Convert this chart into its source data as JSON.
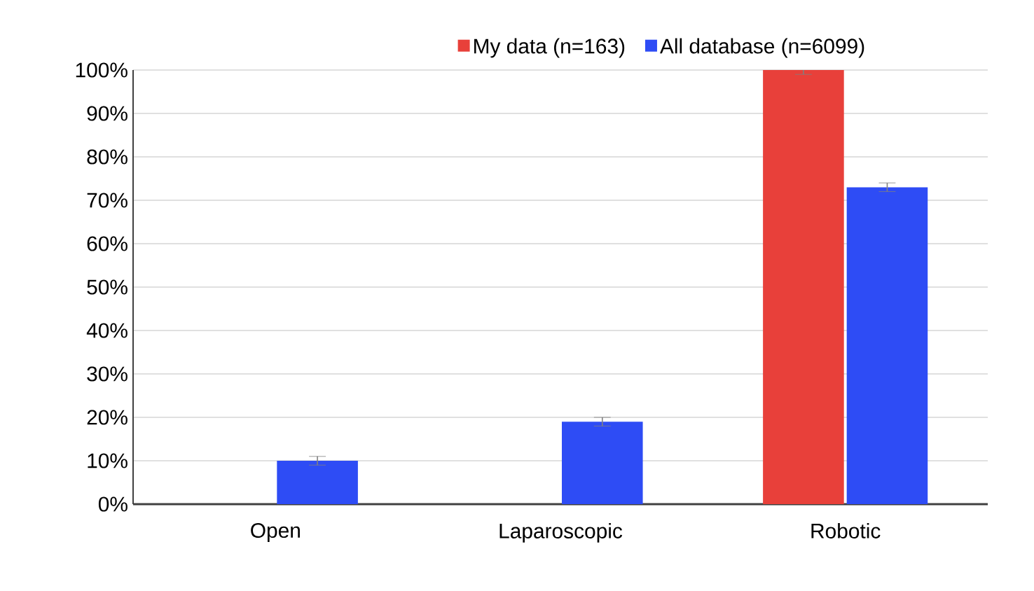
{
  "chart_data": {
    "type": "bar",
    "categories": [
      "Open",
      "Laparoscopic",
      "Robotic"
    ],
    "series": [
      {
        "name": "My data (n=163)",
        "color": "#e8403a",
        "values": [
          0,
          0,
          100
        ],
        "errors": [
          null,
          null,
          1
        ]
      },
      {
        "name": "All database (n=6099)",
        "color": "#2e4cf5",
        "values": [
          10,
          19,
          73
        ],
        "errors": [
          1,
          1,
          1
        ]
      }
    ],
    "ylim": [
      0,
      100
    ],
    "yticks": [
      {
        "value": 0,
        "label": "0%"
      },
      {
        "value": 10,
        "label": "10%"
      },
      {
        "value": 20,
        "label": "20%"
      },
      {
        "value": 30,
        "label": "30%"
      },
      {
        "value": 40,
        "label": "40%"
      },
      {
        "value": 50,
        "label": "50%"
      },
      {
        "value": 60,
        "label": "60%"
      },
      {
        "value": 70,
        "label": "70%"
      },
      {
        "value": 80,
        "label": "80%"
      },
      {
        "value": 90,
        "label": "90%"
      },
      {
        "value": 100,
        "label": "100%"
      }
    ],
    "grid": "y",
    "legend": "top"
  }
}
